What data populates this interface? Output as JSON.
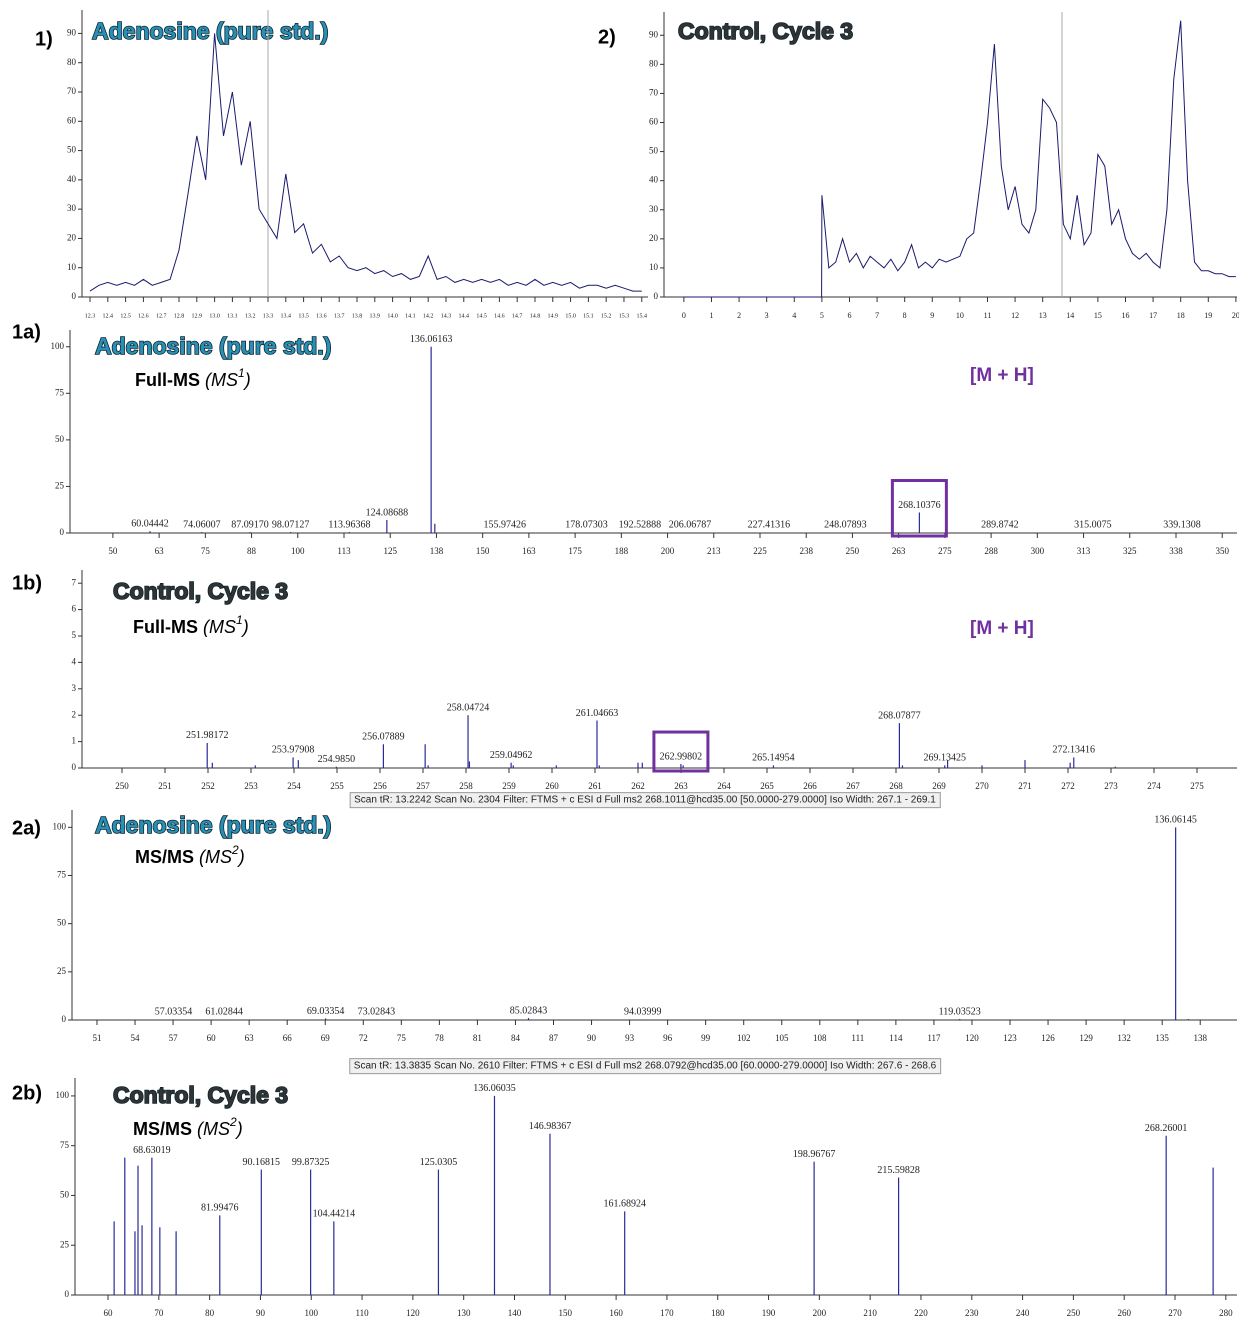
{
  "chart_data": [
    {
      "type": "line",
      "panel": "1)",
      "title": "Adenosine (pure std.)",
      "title_color": "#2a8fb5",
      "color": "#1a1a6e",
      "cursor_x": 13.3,
      "x": [
        12.3,
        12.35,
        12.4,
        12.45,
        12.5,
        12.55,
        12.6,
        12.65,
        12.7,
        12.75,
        12.8,
        12.85,
        12.9,
        12.95,
        13,
        13.05,
        13.1,
        13.15,
        13.2,
        13.25,
        13.3,
        13.35,
        13.4,
        13.45,
        13.5,
        13.55,
        13.6,
        13.65,
        13.7,
        13.75,
        13.8,
        13.85,
        13.9,
        13.95,
        14,
        14.05,
        14.1,
        14.15,
        14.2,
        14.25,
        14.3,
        14.35,
        14.4,
        14.45,
        14.5,
        14.55,
        14.6,
        14.65,
        14.7,
        14.75,
        14.8,
        14.85,
        14.9,
        14.95,
        15,
        15.05,
        15.1,
        15.15,
        15.2,
        15.25,
        15.3,
        15.35,
        15.4
      ],
      "values": [
        2,
        4,
        5,
        4,
        5,
        4,
        6,
        4,
        5,
        6,
        16,
        35,
        55,
        40,
        90,
        55,
        70,
        45,
        60,
        30,
        25,
        20,
        42,
        22,
        25,
        15,
        18,
        12,
        14,
        10,
        9,
        10,
        8,
        9,
        7,
        8,
        6,
        7,
        14,
        6,
        7,
        5,
        6,
        5,
        6,
        5,
        6,
        4,
        5,
        4,
        6,
        4,
        5,
        4,
        5,
        3,
        4,
        4,
        3,
        4,
        3,
        2,
        2
      ],
      "xlim": [
        12.255,
        15.435
      ],
      "ylim": [
        0,
        98
      ],
      "xticks": [
        12.3,
        12.4,
        12.5,
        12.6,
        12.7,
        12.8,
        12.9,
        {
          "value": 13,
          "label": "13.0"
        },
        13.1,
        13.2,
        13.3,
        13.4,
        13.5,
        13.6,
        13.7,
        13.8,
        13.9,
        {
          "value": 14,
          "label": "14.0"
        },
        14.1,
        14.2,
        14.3,
        14.4,
        14.5,
        14.6,
        14.7,
        14.8,
        14.9,
        {
          "value": 15,
          "label": "15.0"
        },
        15.1,
        15.2,
        15.3,
        15.4
      ],
      "yticks": [
        0,
        10,
        20,
        30,
        40,
        50,
        60,
        70,
        80,
        90
      ]
    },
    {
      "type": "line",
      "panel": "2)",
      "title": "Control, Cycle 3",
      "title_color": "#333333",
      "color": "#1a1a6e",
      "cursor_x": 13.7,
      "x": [
        0,
        4.99,
        5,
        5.25,
        5.5,
        5.75,
        6,
        6.25,
        6.5,
        6.75,
        7,
        7.25,
        7.5,
        7.75,
        8,
        8.25,
        8.5,
        8.75,
        9,
        9.25,
        9.5,
        9.75,
        10,
        10.25,
        10.5,
        10.75,
        11,
        11.25,
        11.5,
        11.75,
        12,
        12.25,
        12.5,
        12.75,
        13,
        13.25,
        13.5,
        13.75,
        14,
        14.25,
        14.5,
        14.75,
        15,
        15.25,
        15.5,
        15.75,
        16,
        16.25,
        16.5,
        16.75,
        17,
        17.25,
        17.5,
        17.75,
        18,
        18.25,
        18.5,
        18.75,
        19,
        19.25,
        19.5,
        19.75,
        20
      ],
      "values": [
        0,
        0,
        35,
        10,
        12,
        20,
        12,
        15,
        10,
        14,
        12,
        10,
        13,
        9,
        12,
        18,
        10,
        12,
        10,
        13,
        12,
        13,
        14,
        20,
        22,
        40,
        60,
        87,
        45,
        30,
        38,
        25,
        22,
        30,
        68,
        65,
        60,
        25,
        20,
        35,
        18,
        22,
        49,
        45,
        25,
        30,
        20,
        15,
        13,
        15,
        12,
        10,
        30,
        75,
        95,
        40,
        12,
        9,
        9,
        8,
        8,
        7,
        7
      ],
      "xlim": [
        -0.72,
        20.04
      ],
      "ylim": [
        0,
        98
      ],
      "xticks": [
        0,
        1,
        2,
        3,
        4,
        5,
        6,
        7,
        8,
        9,
        10,
        11,
        12,
        13,
        14,
        15,
        16,
        17,
        18,
        19,
        20
      ],
      "yticks": [
        0,
        10,
        20,
        30,
        40,
        50,
        60,
        70,
        80,
        90
      ]
    },
    {
      "type": "stem",
      "panel": "1a)",
      "title": "Adenosine (pure std.)",
      "title_color": "#2a8fb5",
      "color": "#2a2a9a",
      "subtitle": {
        "text": "Full-MS",
        "em": "(MS",
        "sup": "1",
        "close": ")"
      },
      "annotation": "[M + H]",
      "highlight_index": 14,
      "x": [
        60.04442,
        74.06007,
        87.0917,
        98.07127,
        113.96368,
        124.08688,
        136.06163,
        137.06,
        155.97426,
        178.07303,
        192.52888,
        206.06787,
        227.41316,
        248.07893,
        268.10376,
        289.8742,
        315.0075,
        339.1308
      ],
      "x_labels": [
        "60.04442",
        "74.06007",
        "87.09170",
        "98.07127",
        "113.96368",
        "124.08688",
        "136.06163",
        null,
        "155.97426",
        "178.07303",
        "192.52888",
        "206.06787",
        "227.41316",
        "248.07893",
        "268.10376",
        "289.8742",
        "315.0075",
        "339.1308"
      ],
      "values": [
        1,
        0.5,
        0.5,
        0.5,
        0.5,
        7,
        100,
        5,
        0.3,
        0.3,
        0.3,
        0.3,
        0.3,
        0.3,
        11,
        0.3,
        0.3,
        0.3
      ],
      "xlim": [
        38.4,
        354
      ],
      "ylim": [
        0,
        109
      ],
      "xticks": [
        50,
        {
          "value": 62.5,
          "label": "63"
        },
        75,
        {
          "value": 87.5,
          "label": "88"
        },
        100,
        {
          "value": 112.5,
          "label": "113"
        },
        125,
        {
          "value": 137.5,
          "label": "138"
        },
        150,
        {
          "value": 162.5,
          "label": "163"
        },
        175,
        {
          "value": 187.5,
          "label": "188"
        },
        200,
        {
          "value": 212.5,
          "label": "213"
        },
        225,
        {
          "value": 237.5,
          "label": "238"
        },
        250,
        {
          "value": 262.5,
          "label": "263"
        },
        275,
        {
          "value": 287.5,
          "label": "288"
        },
        300,
        {
          "value": 312.5,
          "label": "313"
        },
        325,
        {
          "value": 337.5,
          "label": "338"
        },
        350
      ],
      "yticks": [
        0,
        25,
        50,
        75,
        100
      ]
    },
    {
      "type": "stem",
      "panel": "1b)",
      "title": "Control, Cycle 3",
      "title_color": "#333333",
      "color": "#2a2a9a",
      "subtitle": {
        "text": "Full-MS",
        "em": "(MS",
        "sup": "1",
        "close": ")"
      },
      "annotation": "[M + H]",
      "highlight_index": 18,
      "x": [
        251.98172,
        252.1,
        253.1,
        253.97908,
        254.1,
        254.985,
        256.07889,
        257.05,
        257.12,
        258.04724,
        258.08,
        259.04962,
        259.1,
        260.1,
        261.04663,
        261.1,
        262.0,
        262.1,
        262.99802,
        263.05,
        265.14954,
        268.07877,
        268.15,
        269.13425,
        269.2,
        270.0,
        271.0,
        272.05,
        272.13416,
        273.1
      ],
      "x_labels": [
        "251.98172",
        null,
        null,
        "253.97908",
        null,
        "254.9850",
        "256.07889",
        null,
        null,
        "258.04724",
        null,
        "259.04962",
        null,
        null,
        "261.04663",
        null,
        null,
        null,
        "262.99802",
        null,
        "265.14954",
        "268.07877",
        null,
        "269.13425",
        null,
        null,
        null,
        null,
        "272.13416",
        null
      ],
      "values": [
        0.95,
        0.2,
        0.1,
        0.4,
        0.3,
        0.05,
        0.9,
        0.9,
        0.1,
        2.0,
        0.25,
        0.2,
        0.1,
        0.1,
        1.8,
        0.1,
        0.2,
        0.2,
        0.15,
        0.1,
        0.1,
        1.7,
        0.1,
        0.1,
        0.3,
        0.1,
        0.3,
        0.2,
        0.4,
        0.05
      ],
      "xlim": [
        249.07,
        275.93
      ],
      "ylim": [
        0,
        7.5
      ],
      "xticks": [
        250,
        251,
        252,
        253,
        254,
        255,
        256,
        257,
        258,
        259,
        260,
        261,
        262,
        263,
        264,
        265,
        266,
        267,
        268,
        269,
        270,
        271,
        272,
        273,
        274,
        275
      ],
      "yticks": [
        0,
        1,
        2,
        3,
        4,
        5,
        6,
        7
      ]
    },
    {
      "type": "stem",
      "panel": "2a)",
      "title": "Adenosine (pure std.)",
      "title_color": "#2a8fb5",
      "color": "#2a2a9a",
      "header": "Scan tR:  13.2242    Scan No.  2304    Filter: FTMS + c ESI d Full ms2 268.1011@hcd35.00 [50.0000-279.0000] Iso Width: 267.1 - 269.1",
      "subtitle": {
        "text": "MS/MS",
        "em": "(MS",
        "sup": "2",
        "close": ")"
      },
      "x": [
        57.03354,
        61.02844,
        69.03354,
        73.02843,
        85.02843,
        94.03999,
        119.03523,
        136.06145,
        137.06
      ],
      "x_labels": [
        "57.03354",
        "61.02844",
        "69.03354",
        "73.02843",
        "85.02843",
        "94.03999",
        "119.03523",
        "136.06145",
        null
      ],
      "values": [
        0.3,
        0.3,
        0.8,
        0.3,
        1,
        0.3,
        0.5,
        100,
        0.5
      ],
      "xlim": [
        49.03,
        140.9
      ],
      "ylim": [
        0,
        109
      ],
      "xticks": [
        51,
        54,
        57,
        60,
        63,
        66,
        69,
        72,
        75,
        78,
        81,
        84,
        87,
        90,
        93,
        96,
        99,
        102,
        105,
        108,
        111,
        114,
        117,
        120,
        123,
        126,
        129,
        132,
        135,
        138
      ],
      "yticks": [
        0,
        25,
        50,
        75,
        100
      ]
    },
    {
      "type": "stem",
      "panel": "2b)",
      "title": "Control, Cycle 3",
      "title_color": "#333333",
      "color": "#2a2a9a",
      "header": "Scan tR:  13.3835    Scan No.  2610    Filter: FTMS + c ESI d Full ms2 268.0792@hcd35.00 [60.0000-279.0000] Iso Width: 267.6 - 268.6",
      "subtitle": {
        "text": "MS/MS",
        "em": "(MS",
        "sup": "2",
        "close": ")"
      },
      "x": [
        61.2,
        63.3,
        65.3,
        65.9,
        66.7,
        68.63019,
        70.2,
        73.4,
        81.99476,
        90.16815,
        99.87325,
        104.44214,
        125.0305,
        136.06035,
        146.98367,
        161.68924,
        198.96767,
        215.59828,
        268.26001,
        277.5
      ],
      "x_labels": [
        null,
        null,
        null,
        null,
        null,
        "68.63019",
        null,
        null,
        "81.99476",
        "90.16815",
        "99.87325",
        "104.44214",
        "125.0305",
        "136.06035",
        "146.98367",
        "161.68924",
        "198.96767",
        "215.59828",
        "268.26001",
        null
      ],
      "values": [
        37,
        69,
        32,
        65,
        35,
        69,
        34,
        32,
        40,
        63,
        63,
        37,
        63,
        100,
        81,
        42,
        67,
        59,
        80,
        64
      ],
      "xlim": [
        53.5,
        282.2
      ],
      "ylim": [
        0,
        109
      ],
      "xticks": [
        60,
        70,
        80,
        90,
        100,
        110,
        120,
        130,
        140,
        150,
        160,
        170,
        180,
        190,
        200,
        210,
        220,
        230,
        240,
        250,
        260,
        270,
        280
      ],
      "yticks": [
        0,
        25,
        50,
        75,
        100
      ]
    }
  ]
}
